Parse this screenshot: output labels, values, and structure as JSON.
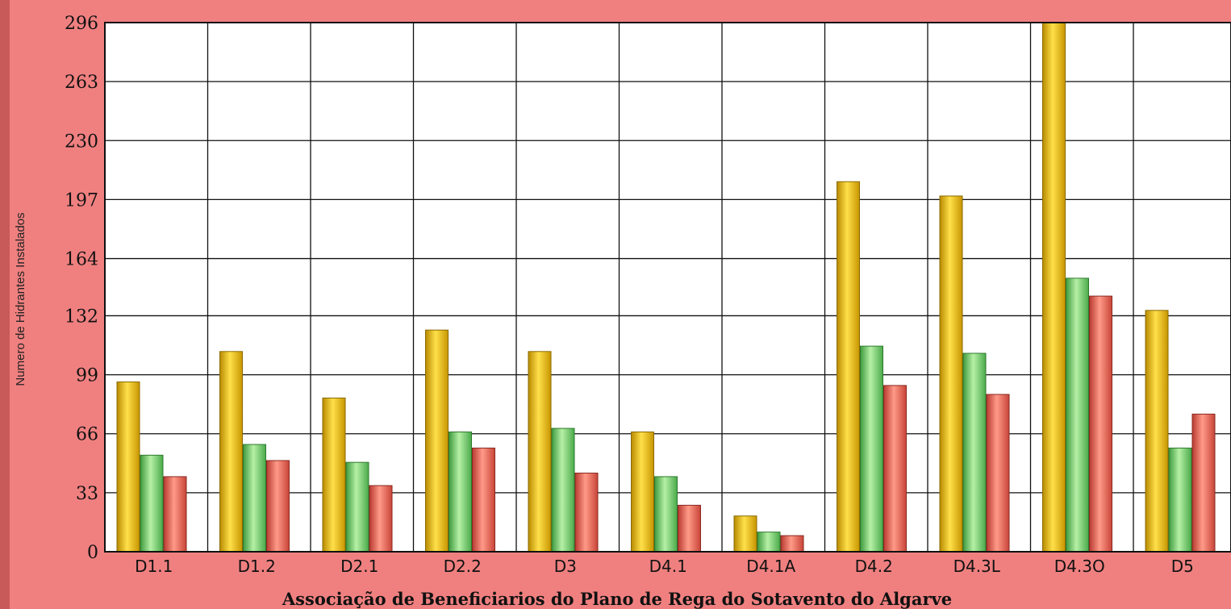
{
  "chart_data": {
    "type": "bar",
    "title": "",
    "xlabel": "Associação de Beneficiarios do Plano de Rega do Sotavento do Algarve",
    "ylabel": "Numero de Hidrantes Instalados",
    "ylim": [
      0,
      296
    ],
    "yticks": [
      0,
      33,
      66,
      99,
      132,
      164,
      197,
      230,
      263,
      296
    ],
    "grid": true,
    "categories": [
      "D1.1",
      "D1.2",
      "D2.1",
      "D2.2",
      "D3",
      "D4.1",
      "D4.1A",
      "D4.2",
      "D4.3L",
      "D4.3O",
      "D5"
    ],
    "series": [
      {
        "color": "#f2c200",
        "values": [
          95,
          112,
          86,
          124,
          112,
          67,
          20,
          207,
          199,
          300,
          135
        ]
      },
      {
        "color": "#66cc66",
        "values": [
          54,
          60,
          50,
          67,
          69,
          42,
          11,
          115,
          111,
          153,
          58
        ]
      },
      {
        "color": "#e85c50",
        "values": [
          42,
          51,
          37,
          58,
          44,
          26,
          9,
          93,
          88,
          143,
          77
        ]
      }
    ]
  }
}
